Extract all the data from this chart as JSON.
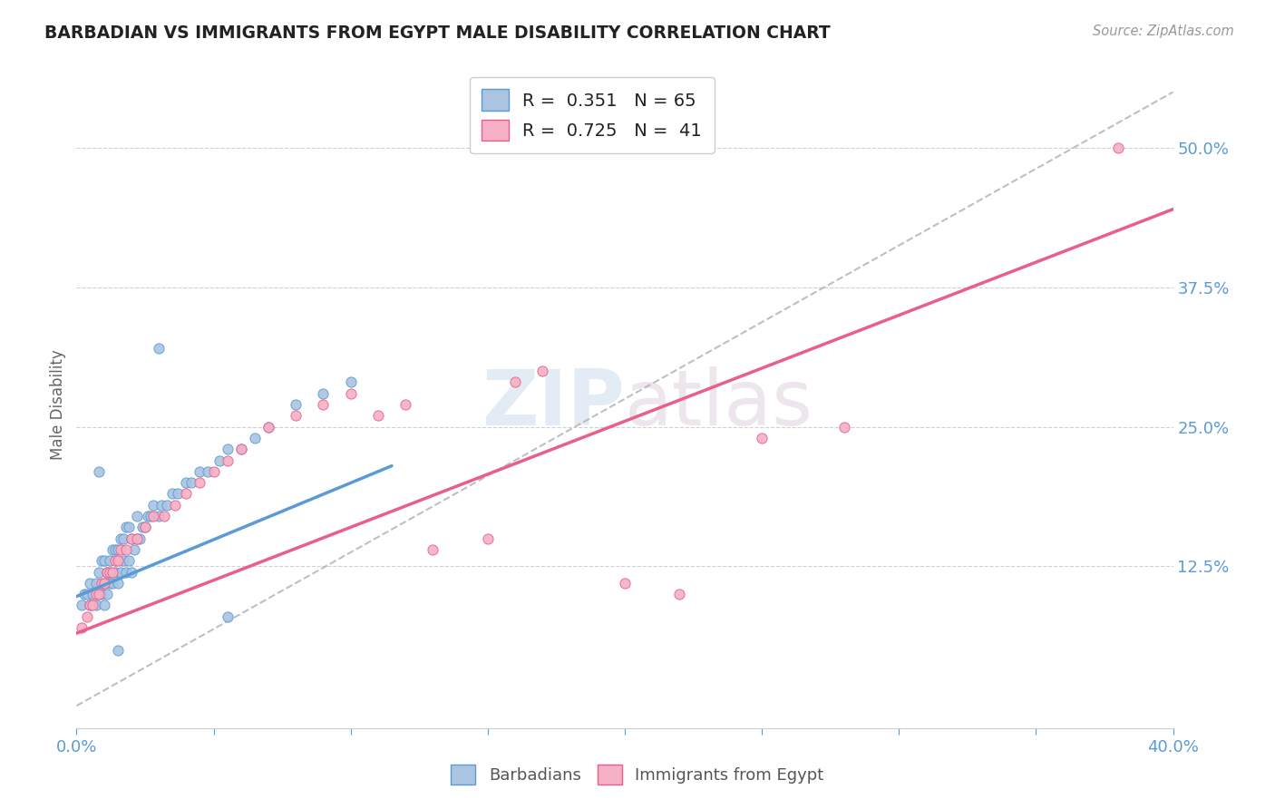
{
  "title": "BARBADIAN VS IMMIGRANTS FROM EGYPT MALE DISABILITY CORRELATION CHART",
  "source": "Source: ZipAtlas.com",
  "ylabel": "Male Disability",
  "watermark": "ZIPatlas",
  "xlim": [
    0.0,
    0.4
  ],
  "ylim": [
    -0.02,
    0.56
  ],
  "ytick_labels": [
    "12.5%",
    "25.0%",
    "37.5%",
    "50.0%"
  ],
  "ytick_vals": [
    0.125,
    0.25,
    0.375,
    0.5
  ],
  "barbadians_R": 0.351,
  "barbadians_N": 65,
  "egypt_R": 0.725,
  "egypt_N": 41,
  "barbadians_color": "#aac4e2",
  "egypt_color": "#f5b0c5",
  "barbadians_line_color": "#5b9bd5",
  "egypt_line_color": "#e8608a",
  "ref_line_color": "#b0b0b0",
  "legend_label_1": "Barbadians",
  "legend_label_2": "Immigrants from Egypt",
  "background_color": "#ffffff",
  "plot_bg_color": "#ffffff",
  "barbadians_x": [
    0.002,
    0.003,
    0.004,
    0.005,
    0.005,
    0.006,
    0.007,
    0.007,
    0.008,
    0.008,
    0.009,
    0.009,
    0.01,
    0.01,
    0.01,
    0.011,
    0.011,
    0.012,
    0.012,
    0.013,
    0.013,
    0.014,
    0.014,
    0.015,
    0.015,
    0.016,
    0.016,
    0.017,
    0.017,
    0.018,
    0.018,
    0.019,
    0.019,
    0.02,
    0.02,
    0.021,
    0.022,
    0.022,
    0.023,
    0.024,
    0.025,
    0.026,
    0.027,
    0.028,
    0.03,
    0.031,
    0.033,
    0.035,
    0.037,
    0.04,
    0.042,
    0.045,
    0.048,
    0.052,
    0.055,
    0.06,
    0.065,
    0.07,
    0.08,
    0.09,
    0.1,
    0.03,
    0.008,
    0.055,
    0.015
  ],
  "barbadians_y": [
    0.09,
    0.1,
    0.1,
    0.11,
    0.09,
    0.1,
    0.09,
    0.11,
    0.1,
    0.12,
    0.1,
    0.13,
    0.09,
    0.11,
    0.13,
    0.1,
    0.12,
    0.11,
    0.13,
    0.11,
    0.14,
    0.12,
    0.14,
    0.11,
    0.14,
    0.12,
    0.15,
    0.13,
    0.15,
    0.12,
    0.16,
    0.13,
    0.16,
    0.12,
    0.15,
    0.14,
    0.15,
    0.17,
    0.15,
    0.16,
    0.16,
    0.17,
    0.17,
    0.18,
    0.17,
    0.18,
    0.18,
    0.19,
    0.19,
    0.2,
    0.2,
    0.21,
    0.21,
    0.22,
    0.23,
    0.23,
    0.24,
    0.25,
    0.27,
    0.28,
    0.29,
    0.32,
    0.21,
    0.08,
    0.05
  ],
  "egypt_x": [
    0.002,
    0.004,
    0.005,
    0.006,
    0.007,
    0.008,
    0.009,
    0.01,
    0.011,
    0.012,
    0.013,
    0.014,
    0.015,
    0.016,
    0.018,
    0.02,
    0.022,
    0.025,
    0.028,
    0.032,
    0.036,
    0.04,
    0.045,
    0.05,
    0.055,
    0.06,
    0.07,
    0.08,
    0.09,
    0.1,
    0.11,
    0.12,
    0.13,
    0.15,
    0.16,
    0.17,
    0.2,
    0.22,
    0.25,
    0.28,
    0.38
  ],
  "egypt_y": [
    0.07,
    0.08,
    0.09,
    0.09,
    0.1,
    0.1,
    0.11,
    0.11,
    0.12,
    0.12,
    0.12,
    0.13,
    0.13,
    0.14,
    0.14,
    0.15,
    0.15,
    0.16,
    0.17,
    0.17,
    0.18,
    0.19,
    0.2,
    0.21,
    0.22,
    0.23,
    0.25,
    0.26,
    0.27,
    0.28,
    0.26,
    0.27,
    0.14,
    0.15,
    0.29,
    0.3,
    0.11,
    0.1,
    0.24,
    0.25,
    0.5
  ],
  "barb_line_x": [
    0.0,
    0.115
  ],
  "barb_line_y": [
    0.098,
    0.215
  ],
  "egypt_line_x": [
    0.0,
    0.4
  ],
  "egypt_line_y": [
    0.065,
    0.445
  ],
  "diag_line_x": [
    0.0,
    0.4
  ],
  "diag_line_y": [
    0.0,
    0.55
  ]
}
